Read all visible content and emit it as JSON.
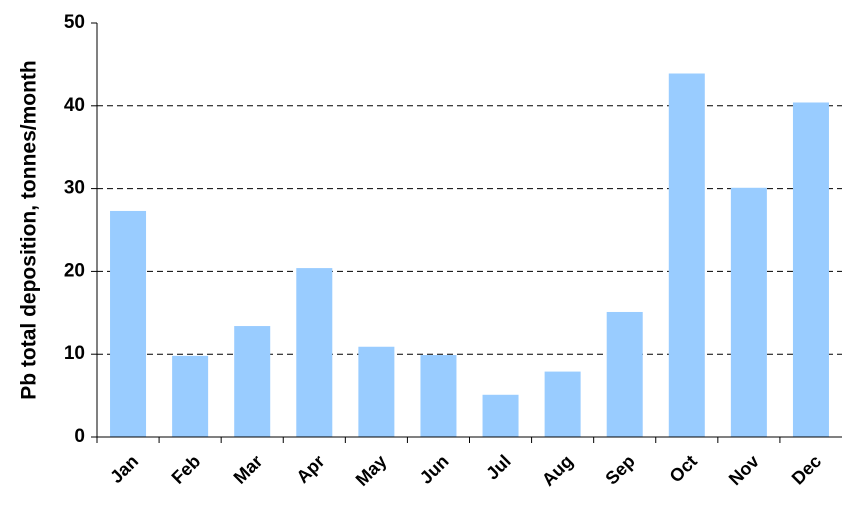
{
  "chart_data": {
    "type": "bar",
    "y_label": "Pb total deposition, tonnes/month",
    "categories": [
      "Jan",
      "Feb",
      "Mar",
      "Apr",
      "May",
      "Jun",
      "Jul",
      "Aug",
      "Sep",
      "Oct",
      "Nov",
      "Dec"
    ],
    "values": [
      27.3,
      9.8,
      13.4,
      20.4,
      10.9,
      9.9,
      5.1,
      7.9,
      15.1,
      43.9,
      30.1,
      40.4
    ],
    "color": "#99ccff",
    "ylim": [
      0,
      50
    ],
    "yticks": [
      0,
      10,
      20,
      30,
      40,
      50
    ],
    "grid": true
  }
}
